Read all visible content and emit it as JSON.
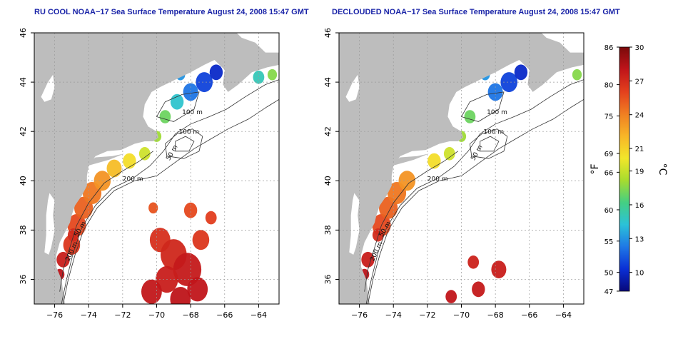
{
  "panels": [
    {
      "title": "RU COOL NOAA−17 Sea Surface Temperature August 24, 2008 15:47 GMT",
      "contour_labels": [
        "100 m",
        "100 m",
        "50 m",
        "200 m",
        "50 m",
        "200 m"
      ]
    },
    {
      "title": "DECLOUDED NOAA−17 Sea Surface Temperature August 24, 2008 15:47 GMT",
      "contour_labels": [
        "100 m",
        "100 m",
        "50 m",
        "200 m",
        "50 m",
        "200 m"
      ]
    }
  ],
  "axes": {
    "lon_ticks": [
      "−76",
      "−74",
      "−72",
      "−70",
      "−68",
      "−66",
      "−64"
    ],
    "lat_ticks": [
      "36",
      "38",
      "40",
      "42",
      "44",
      "46"
    ],
    "lon_range": [
      -77.2,
      -62.8
    ],
    "lat_range": [
      35.0,
      46.0
    ]
  },
  "colorbar": {
    "celsius_label": "°C",
    "fahrenheit_label": "°F",
    "celsius_ticks": [
      "30",
      "27",
      "24",
      "21",
      "19",
      "16",
      "13",
      "10"
    ],
    "fahrenheit_ticks": [
      "86",
      "80",
      "75",
      "69",
      "66",
      "60",
      "55",
      "50",
      "47"
    ],
    "celsius_range": [
      8.33,
      30.0
    ],
    "colors": [
      "#08087a",
      "#0a2fd6",
      "#1f78e6",
      "#2bc2d8",
      "#45cf82",
      "#a8dc2e",
      "#f2e62a",
      "#f7b527",
      "#f07e22",
      "#e3401d",
      "#c0141a",
      "#7a0a0a"
    ]
  },
  "colors": {
    "land": "#bdbdbd",
    "ocean_bg": "#ffffff",
    "title": "#1a24a8",
    "contour": "#333333",
    "grid": "#9a9a9a"
  }
}
